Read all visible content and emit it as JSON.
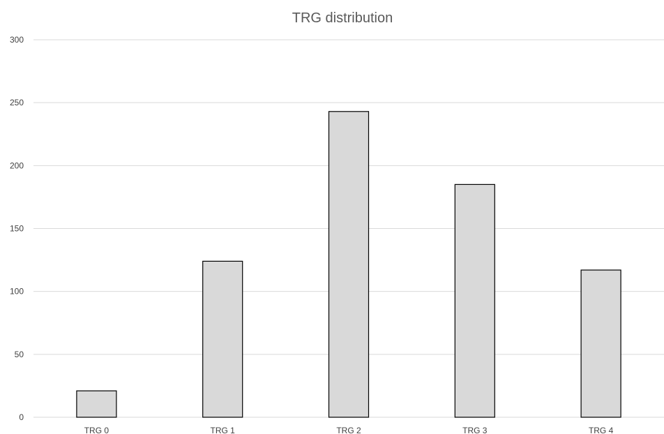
{
  "chart_data": {
    "type": "bar",
    "title": "TRG distribution",
    "xlabel": "",
    "ylabel": "",
    "categories": [
      "TRG 0",
      "TRG 1",
      "TRG 2",
      "TRG 3",
      "TRG 4"
    ],
    "values": [
      21,
      124,
      243,
      185,
      117
    ],
    "ylim": [
      0,
      300
    ],
    "yticks": [
      0,
      50,
      100,
      150,
      200,
      250,
      300
    ],
    "grid": true,
    "legend": "none",
    "colors": {
      "bar_fill": "#d9d9d9",
      "bar_stroke": "#000000",
      "gridline": "#d9d9d9",
      "title": "#595959",
      "tick_text": "#404040"
    }
  }
}
